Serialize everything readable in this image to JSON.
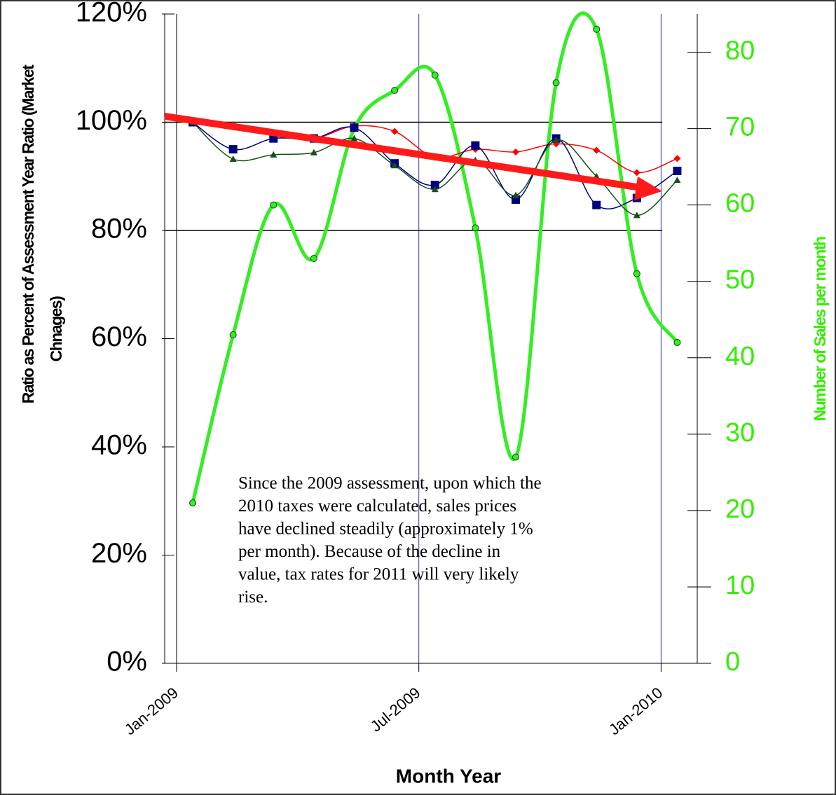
{
  "chart_data": {
    "type": "line",
    "ylabel": [
      "Ratio as Percent of Assessment Year Ratio (Market",
      "Chnages)"
    ],
    "xlabel": "Month Year",
    "y2label": "Number of Sales per month",
    "annotation": [
      "Since the 2009 assessment, upon which the",
      "2010 taxes were calculated, sales prices",
      "have declined steadily (approximately 1%",
      "per month).  Because of the decline in",
      "value, tax rates for 2011 will very likely",
      "rise."
    ],
    "x": [
      "2009-01",
      "2009-02",
      "2009-03",
      "2009-04",
      "2009-05",
      "2009-06",
      "2009-07",
      "2009-08",
      "2009-09",
      "2009-10",
      "2009-11",
      "2009-12",
      "2010-01"
    ],
    "xlim": [
      "2009-01",
      "2010-02"
    ],
    "xticks": [
      {
        "value": "2009-01",
        "label": "Jan-2009"
      },
      {
        "value": "2009-07",
        "label": "Jul-2009"
      },
      {
        "value": "2010-01",
        "label": "Jan-2010"
      }
    ],
    "ylim": [
      0,
      120
    ],
    "yticks": [
      {
        "value": 0,
        "label": "0%"
      },
      {
        "value": 20,
        "label": "20%"
      },
      {
        "value": 40,
        "label": "40%"
      },
      {
        "value": 60,
        "label": "60%"
      },
      {
        "value": 80,
        "label": "80%"
      },
      {
        "value": 100,
        "label": "100%"
      },
      {
        "value": 120,
        "label": "120%"
      }
    ],
    "y2lim": [
      0,
      85
    ],
    "y2ticks": [
      0,
      10,
      20,
      30,
      40,
      50,
      60,
      70,
      80
    ],
    "reference_lines": [
      100,
      80
    ],
    "series": [
      {
        "color": "#33ee22",
        "marker": "circle",
        "axis": "y2",
        "values": [
          21,
          43,
          60,
          53,
          70,
          75,
          77,
          57,
          27,
          76,
          83,
          51,
          42
        ]
      },
      {
        "color": "#ff0000",
        "marker": "diamond",
        "values": [
          100,
          99.5,
          97.5,
          97,
          99.3,
          98.3,
          93.5,
          95,
          94.5,
          96,
          94.8,
          90.7,
          93.3
        ]
      },
      {
        "color": "#000080",
        "marker": "square",
        "values": [
          100,
          95,
          97,
          97,
          99,
          92.4,
          88.4,
          95.7,
          85.7,
          97,
          84.7,
          86,
          91
        ]
      },
      {
        "color": "#1a4d1a",
        "marker": "triangle",
        "values": [
          100,
          93.2,
          94,
          94.4,
          97,
          92,
          87.6,
          93,
          86.5,
          96.7,
          90,
          82.8,
          89.3
        ]
      }
    ]
  }
}
